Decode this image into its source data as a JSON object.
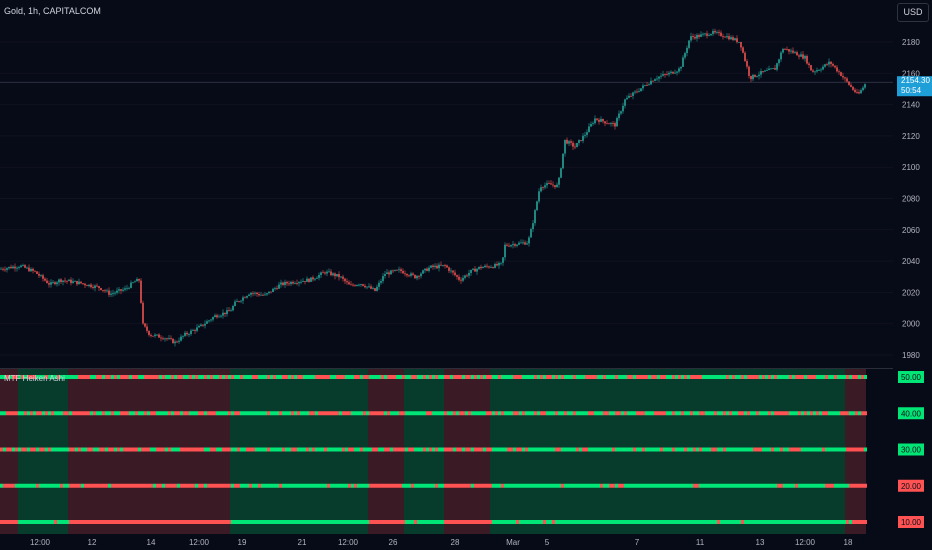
{
  "header": {
    "title": "Gold, 1h, CAPITALCOM"
  },
  "currency_button": "USD",
  "indicator": {
    "title": "MTF Heiken Ashi"
  },
  "last_price": {
    "price": "2154.30",
    "countdown": "50:54",
    "value": 2154.3
  },
  "colors": {
    "background": "#070a17",
    "bull": "#26a69a",
    "bear": "#ef5350",
    "bull_bright": "#00e676",
    "bear_bright": "#ff5252",
    "bull_zone": "#073b2c",
    "bear_zone": "#3a1a24",
    "tag": "#1f9fd8"
  },
  "chart_data": {
    "type": "candlestick",
    "title": "Gold, 1h, CAPITALCOM",
    "y_axis": {
      "range": [
        1970,
        2195
      ],
      "ticks": [
        1980,
        2000,
        2020,
        2040,
        2060,
        2080,
        2100,
        2120,
        2140,
        2160,
        2180
      ]
    },
    "x_axis": {
      "tick_labels": [
        "12:00",
        "12",
        "14",
        "12:00",
        "19",
        "21",
        "12:00",
        "26",
        "28",
        "Mar",
        "5",
        "7",
        "11",
        "13",
        "12:00",
        "18"
      ]
    },
    "price_path": [
      [
        0,
        2035
      ],
      [
        20,
        2037
      ],
      [
        35,
        2033
      ],
      [
        50,
        2025
      ],
      [
        60,
        2028
      ],
      [
        80,
        2026
      ],
      [
        100,
        2023
      ],
      [
        110,
        2019
      ],
      [
        125,
        2022
      ],
      [
        135,
        2027
      ],
      [
        140,
        2028
      ],
      [
        142,
        2000
      ],
      [
        150,
        1993
      ],
      [
        165,
        1991
      ],
      [
        175,
        1988
      ],
      [
        185,
        1993
      ],
      [
        200,
        1998
      ],
      [
        215,
        2005
      ],
      [
        230,
        2008
      ],
      [
        235,
        2013
      ],
      [
        250,
        2020
      ],
      [
        265,
        2018
      ],
      [
        280,
        2025
      ],
      [
        295,
        2027
      ],
      [
        310,
        2028
      ],
      [
        325,
        2033
      ],
      [
        340,
        2030
      ],
      [
        350,
        2024
      ],
      [
        360,
        2026
      ],
      [
        375,
        2021
      ],
      [
        385,
        2032
      ],
      [
        400,
        2034
      ],
      [
        415,
        2030
      ],
      [
        430,
        2036
      ],
      [
        445,
        2037
      ],
      [
        460,
        2028
      ],
      [
        470,
        2033
      ],
      [
        480,
        2036
      ],
      [
        495,
        2037
      ],
      [
        502,
        2038
      ],
      [
        505,
        2050
      ],
      [
        515,
        2051
      ],
      [
        528,
        2052
      ],
      [
        532,
        2062
      ],
      [
        540,
        2088
      ],
      [
        550,
        2089
      ],
      [
        558,
        2088
      ],
      [
        565,
        2117
      ],
      [
        575,
        2113
      ],
      [
        585,
        2121
      ],
      [
        595,
        2131
      ],
      [
        605,
        2129
      ],
      [
        615,
        2127
      ],
      [
        625,
        2143
      ],
      [
        640,
        2150
      ],
      [
        655,
        2157
      ],
      [
        670,
        2160
      ],
      [
        680,
        2163
      ],
      [
        690,
        2183
      ],
      [
        700,
        2184
      ],
      [
        712,
        2186
      ],
      [
        725,
        2184
      ],
      [
        740,
        2180
      ],
      [
        750,
        2157
      ],
      [
        760,
        2160
      ],
      [
        775,
        2163
      ],
      [
        783,
        2176
      ],
      [
        795,
        2173
      ],
      [
        805,
        2170
      ],
      [
        812,
        2161
      ],
      [
        820,
        2163
      ],
      [
        830,
        2167
      ],
      [
        840,
        2160
      ],
      [
        850,
        2152
      ],
      [
        858,
        2146
      ],
      [
        866,
        2154
      ]
    ],
    "indicator": {
      "name": "MTF Heiken Ashi",
      "levels": [
        50,
        40,
        30,
        20,
        10
      ],
      "level_labels": [
        "50.00",
        "40.00",
        "30.00",
        "20.00",
        "10.00"
      ],
      "level_colors": [
        "#00e676",
        "#00e676",
        "#00e676",
        "#ff5252",
        "#ff5252"
      ],
      "level_scale": [
        5,
        55
      ],
      "zones": [
        {
          "x": [
            0,
            18
          ],
          "state": "bear"
        },
        {
          "x": [
            18,
            68
          ],
          "state": "bull"
        },
        {
          "x": [
            68,
            230
          ],
          "state": "bear"
        },
        {
          "x": [
            230,
            368
          ],
          "state": "bull"
        },
        {
          "x": [
            368,
            404
          ],
          "state": "bear"
        },
        {
          "x": [
            404,
            444
          ],
          "state": "bull"
        },
        {
          "x": [
            444,
            490
          ],
          "state": "bear"
        },
        {
          "x": [
            490,
            845
          ],
          "state": "bull"
        },
        {
          "x": [
            845,
            866
          ],
          "state": "bear"
        }
      ]
    }
  }
}
